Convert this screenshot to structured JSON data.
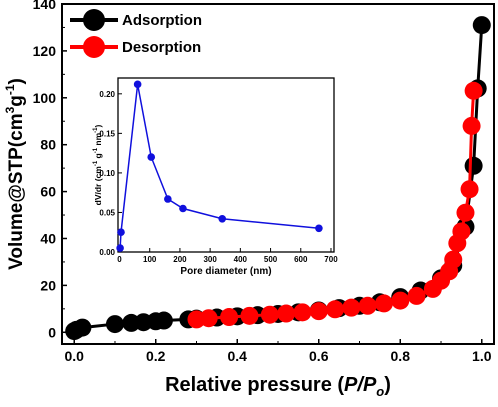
{
  "chart_data": [
    {
      "type": "scatter",
      "xlabel": "Relative pressure (P/Po)",
      "xlabel_parts": {
        "prefix": "Relative pressure (",
        "italic": "P/P",
        "subscript": "o",
        "suffix": ")"
      },
      "ylabel": "Volume@STP(cm³g⁻¹)",
      "ylabel_parts": {
        "base": "Volume@STP(cm",
        "sup1": "3",
        "mid": "g",
        "sup2": "-1",
        "end": ")"
      },
      "xlim": [
        -0.03,
        1.03
      ],
      "ylim": [
        -5,
        140
      ],
      "xticks": [
        "0.0",
        "0.2",
        "0.4",
        "0.6",
        "0.8",
        "1.0"
      ],
      "xtick_values": [
        0.0,
        0.2,
        0.4,
        0.6,
        0.8,
        1.0
      ],
      "yticks": [
        "0",
        "20",
        "40",
        "60",
        "80",
        "100",
        "120",
        "140"
      ],
      "ytick_values": [
        0,
        20,
        40,
        60,
        80,
        100,
        120,
        140
      ],
      "legend_position": "top-left",
      "grid": false,
      "series": [
        {
          "name": "Adsorption",
          "color": "#000000",
          "x": [
            0.0,
            0.005,
            0.02,
            0.1,
            0.14,
            0.17,
            0.2,
            0.22,
            0.28,
            0.3,
            0.35,
            0.4,
            0.45,
            0.5,
            0.55,
            0.6,
            0.65,
            0.7,
            0.75,
            0.8,
            0.85,
            0.9,
            0.93,
            0.96,
            0.98,
            0.99,
            1.0
          ],
          "y": [
            0.5,
            1.0,
            2.0,
            3.5,
            4.0,
            4.3,
            4.7,
            5.0,
            5.5,
            5.8,
            6.3,
            6.8,
            7.3,
            7.8,
            8.5,
            9.3,
            10.3,
            11.3,
            12.8,
            15.0,
            17.8,
            23.0,
            28.5,
            45.0,
            71.0,
            104.0,
            131.0
          ]
        },
        {
          "name": "Desorption",
          "color": "#ff0000",
          "x": [
            0.3,
            0.33,
            0.38,
            0.43,
            0.48,
            0.52,
            0.56,
            0.6,
            0.64,
            0.68,
            0.72,
            0.76,
            0.8,
            0.84,
            0.88,
            0.9,
            0.92,
            0.93,
            0.94,
            0.95,
            0.96,
            0.97,
            0.975,
            0.98
          ],
          "y": [
            5.5,
            6.0,
            6.5,
            7.0,
            7.5,
            8.0,
            8.5,
            9.0,
            9.8,
            10.5,
            11.3,
            12.3,
            13.5,
            15.5,
            18.5,
            22.0,
            26.0,
            31.0,
            38.0,
            43.0,
            51.0,
            61.0,
            88.0,
            103.0
          ]
        }
      ]
    },
    {
      "type": "line",
      "xlabel": "Pore diameter (nm)",
      "ylabel": "dV/dr (cm⁻¹ g⁻¹ nm⁻¹)",
      "ylabel_parts": {
        "base": "dV/dr (cm",
        "sup1": "-1",
        "mid": " g",
        "sup2": "-1",
        "mid2": " nm",
        "sup3": "-1",
        "end": ")"
      },
      "xlim": [
        -5,
        710
      ],
      "ylim": [
        0.0,
        0.22
      ],
      "xticks": [
        "0",
        "100",
        "200",
        "300",
        "400",
        "500",
        "600",
        "700"
      ],
      "xtick_values": [
        0,
        100,
        200,
        300,
        400,
        500,
        600,
        700
      ],
      "yticks": [
        "0.00",
        "0.05",
        "0.10",
        "0.15",
        "0.20"
      ],
      "ytick_values": [
        0.0,
        0.05,
        0.1,
        0.15,
        0.2
      ],
      "grid": false,
      "series": [
        {
          "color": "#1010dd",
          "x": [
            2,
            5,
            60,
            105,
            160,
            210,
            340,
            660
          ],
          "y": [
            0.005,
            0.025,
            0.212,
            0.12,
            0.067,
            0.055,
            0.042,
            0.03
          ]
        }
      ]
    }
  ]
}
